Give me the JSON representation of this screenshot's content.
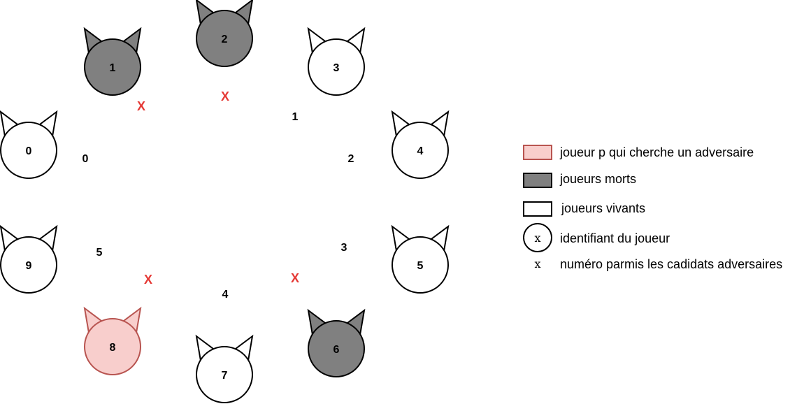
{
  "colors": {
    "dead_fill": "#808080",
    "alive_fill": "#ffffff",
    "searcher_fill": "#f8cecc",
    "searcher_stroke": "#b85450",
    "stroke": "#000000",
    "mark": "#e53935"
  },
  "players": [
    {
      "id": "0",
      "state": "alive"
    },
    {
      "id": "1",
      "state": "dead"
    },
    {
      "id": "2",
      "state": "dead"
    },
    {
      "id": "3",
      "state": "alive"
    },
    {
      "id": "4",
      "state": "alive"
    },
    {
      "id": "5",
      "state": "alive"
    },
    {
      "id": "6",
      "state": "dead"
    },
    {
      "id": "7",
      "state": "alive"
    },
    {
      "id": "8",
      "state": "searcher"
    },
    {
      "id": "9",
      "state": "alive"
    }
  ],
  "candidate_numbers": [
    "0",
    "1",
    "2",
    "3",
    "4",
    "5"
  ],
  "excluded_marks": [
    "X",
    "X",
    "X",
    "X"
  ],
  "legend": {
    "searcher": "joueur p qui cherche un adversaire",
    "dead": "joueurs morts",
    "alive": "joueurs vivants",
    "id_symbol": "x",
    "id_text": "identifiant du joueur",
    "num_symbol": "x",
    "num_text": "numéro parmis les cadidats adversaires"
  }
}
